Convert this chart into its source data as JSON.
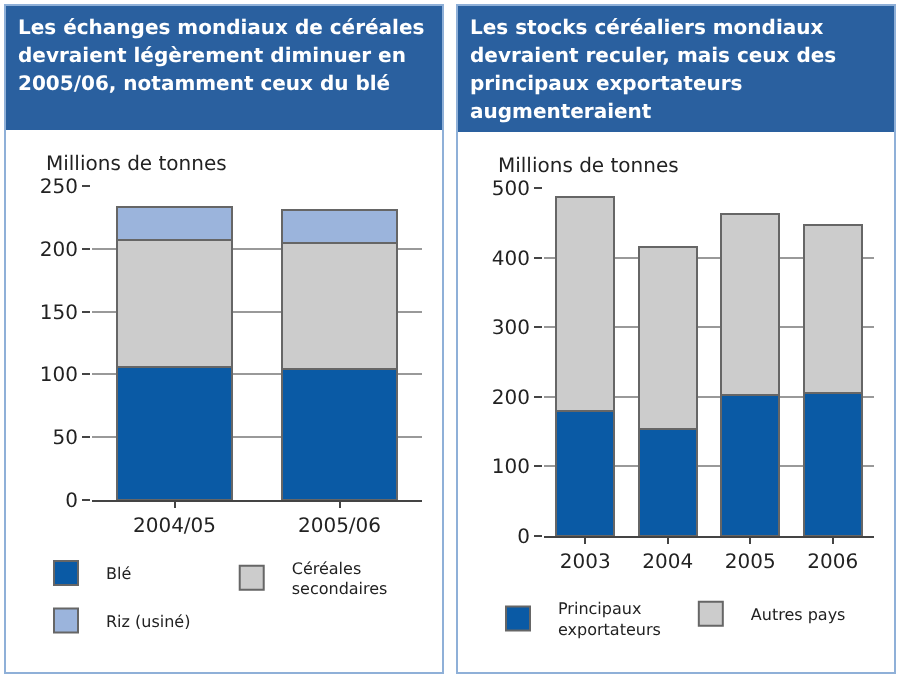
{
  "chart_data": [
    {
      "type": "bar",
      "title": "Les échanges mondiaux de céréales devraient légèrement diminuer en 2005/06, notamment ceux du blé",
      "ylabel": "Millions de tonnes",
      "categories": [
        "2004/05",
        "2005/06"
      ],
      "stacked": true,
      "series": [
        {
          "name": "Blé",
          "color": "#0a5aa5",
          "values": [
            106,
            104
          ]
        },
        {
          "name": "Céréales secondaires",
          "color": "#cccccc",
          "values": [
            101,
            101
          ]
        },
        {
          "name": "Riz (usiné)",
          "color": "#9bb4dc",
          "values": [
            26,
            26
          ]
        }
      ],
      "ylim": [
        0,
        250
      ],
      "yticks": [
        0,
        50,
        100,
        150,
        200,
        250
      ],
      "grid": "y",
      "legend": "bottom"
    },
    {
      "type": "bar",
      "title": "Les stocks céréaliers mondiaux devraient reculer, mais ceux des principaux exportateurs augmenteraient",
      "ylabel": "Millions de tonnes",
      "categories": [
        "2003",
        "2004",
        "2005",
        "2006"
      ],
      "stacked": true,
      "series": [
        {
          "name": "Principaux exportateurs",
          "color": "#0a5aa5",
          "values": [
            180,
            154,
            202,
            206
          ]
        },
        {
          "name": "Autres pays",
          "color": "#cccccc",
          "values": [
            307,
            261,
            261,
            241
          ]
        }
      ],
      "ylim": [
        0,
        500
      ],
      "yticks": [
        0,
        100,
        200,
        300,
        400,
        500
      ],
      "grid": "y",
      "legend": "bottom"
    }
  ]
}
